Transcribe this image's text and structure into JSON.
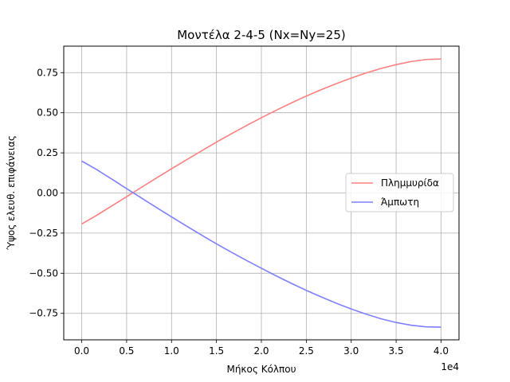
{
  "chart_data": {
    "type": "line",
    "title": "Μοντέλα 2-4-5 (Nx=Ny=25)",
    "xlabel": "Μήκος Κόλπου",
    "ylabel": "Ύψος ελευθ. επιφάνειας",
    "x_offset_text": "1e4",
    "xlim": [
      -2000,
      42000
    ],
    "ylim": [
      -0.915,
      0.915
    ],
    "x_ticks": [
      0,
      5000,
      10000,
      15000,
      20000,
      25000,
      30000,
      35000,
      40000
    ],
    "x_tick_labels": [
      "0.0",
      "0.5",
      "1.0",
      "1.5",
      "2.0",
      "2.5",
      "3.0",
      "3.5",
      "4.0"
    ],
    "y_ticks": [
      -0.75,
      -0.5,
      -0.25,
      0.0,
      0.25,
      0.5,
      0.75
    ],
    "y_tick_labels": [
      "−0.75",
      "−0.50",
      "−0.25",
      "0.00",
      "0.25",
      "0.50",
      "0.75"
    ],
    "grid": true,
    "legend_position": "center-right",
    "x": [
      0,
      1666.7,
      3333.3,
      5000,
      6666.7,
      8333.3,
      10000,
      11666.7,
      13333.3,
      15000,
      16666.7,
      18333.3,
      20000,
      21666.7,
      23333.3,
      25000,
      26666.7,
      28333.3,
      30000,
      31666.7,
      33333.3,
      35000,
      36666.7,
      38333.3,
      40000
    ],
    "series": [
      {
        "name": "Πλημμυρίδα",
        "color": "#ff7f7f",
        "values": [
          -0.193,
          -0.139,
          -0.081,
          -0.023,
          0.036,
          0.094,
          0.151,
          0.207,
          0.262,
          0.317,
          0.369,
          0.42,
          0.469,
          0.516,
          0.561,
          0.604,
          0.644,
          0.681,
          0.716,
          0.748,
          0.776,
          0.8,
          0.819,
          0.832,
          0.835
        ]
      },
      {
        "name": "Άμπωτη",
        "color": "#7f7fff",
        "values": [
          0.199,
          0.146,
          0.087,
          0.027,
          -0.032,
          -0.091,
          -0.149,
          -0.206,
          -0.262,
          -0.317,
          -0.369,
          -0.42,
          -0.469,
          -0.517,
          -0.563,
          -0.607,
          -0.648,
          -0.687,
          -0.723,
          -0.755,
          -0.784,
          -0.807,
          -0.824,
          -0.834,
          -0.836
        ]
      }
    ]
  }
}
